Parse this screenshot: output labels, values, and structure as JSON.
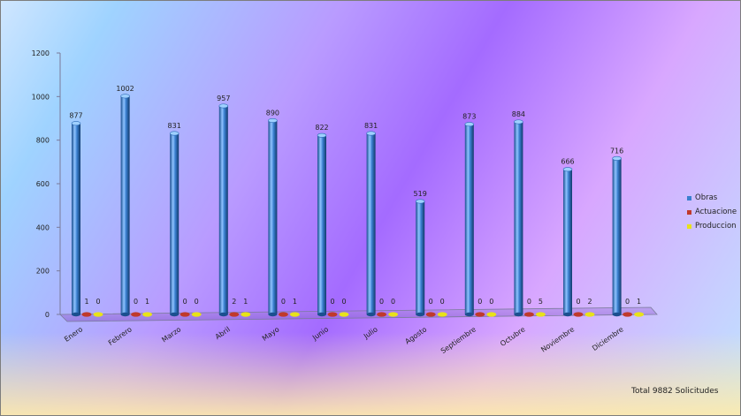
{
  "chart_data": {
    "type": "bar",
    "categories": [
      "Enero",
      "Febrero",
      "Marzo",
      "Abril",
      "Mayo",
      "Junio",
      "Julio",
      "Agosto",
      "Septiembre",
      "Octubre",
      "Noviembre",
      "Diciembre"
    ],
    "series": [
      {
        "name": "Obras",
        "color": "#3a7fcf",
        "values": [
          877,
          1002,
          831,
          957,
          890,
          822,
          831,
          519,
          873,
          884,
          666,
          716
        ]
      },
      {
        "name": "Actuaciones",
        "color": "#c0392b",
        "values": [
          1,
          0,
          0,
          2,
          0,
          0,
          0,
          0,
          0,
          0,
          0,
          0
        ]
      },
      {
        "name": "Producciones",
        "color": "#e8e21a",
        "values": [
          0,
          1,
          0,
          1,
          1,
          0,
          0,
          0,
          0,
          5,
          2,
          1
        ]
      }
    ],
    "yticks": [
      0,
      200,
      400,
      600,
      800,
      1000,
      1200
    ],
    "ylim": [
      0,
      1200
    ],
    "legend_labels": [
      "Obras",
      "Actuacione",
      "Produccion"
    ],
    "legend_position": "right"
  },
  "footer": {
    "total_text": "Total 9882  Solicitudes"
  }
}
